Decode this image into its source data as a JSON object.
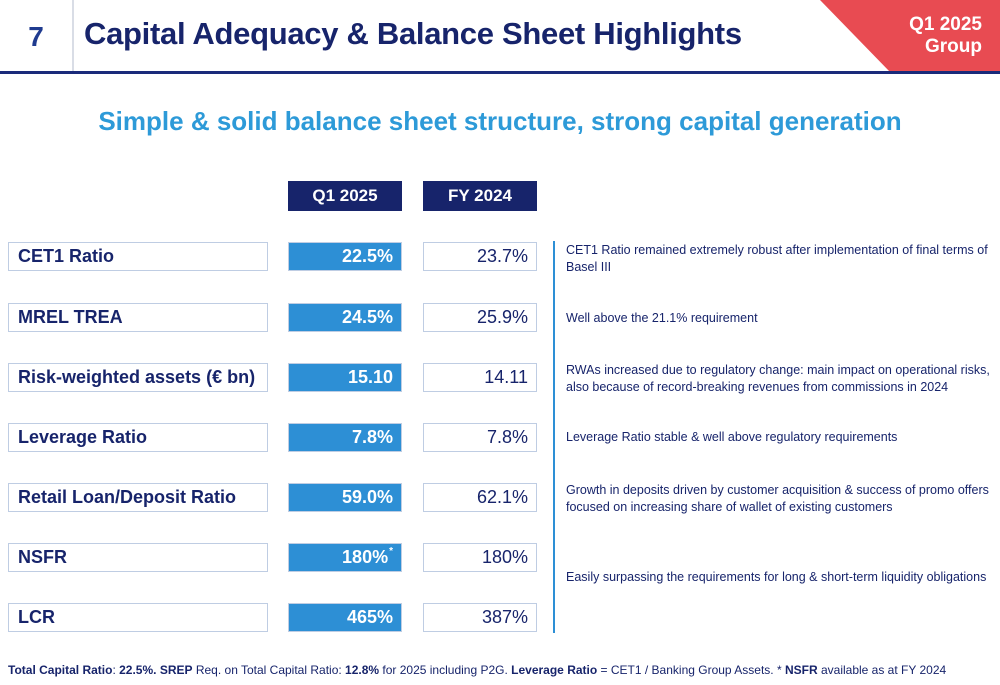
{
  "header": {
    "page_number": "7",
    "title": "Capital Adequacy & Balance Sheet Highlights",
    "period_line1": "Q1 2025",
    "period_line2": "Group"
  },
  "subtitle": "Simple & solid balance sheet structure, strong capital generation",
  "columns": {
    "q1": "Q1 2025",
    "fy": "FY 2024"
  },
  "rows": [
    {
      "label": "CET1 Ratio",
      "q1": "22.5%",
      "fy": "23.7%",
      "comment": "CET1 Ratio remained extremely robust after implementation of final terms of Basel III"
    },
    {
      "label": "MREL TREA",
      "q1": "24.5%",
      "fy": "25.9%",
      "comment": "Well above the 21.1% requirement"
    },
    {
      "label": "Risk-weighted assets (€ bn)",
      "q1": "15.10",
      "fy": "14.11",
      "comment": "RWAs increased due to regulatory change: main impact on operational risks, also because of record-breaking revenues from commissions in 2024"
    },
    {
      "label": "Leverage Ratio",
      "q1": "7.8%",
      "fy": "7.8%",
      "comment": "Leverage Ratio stable & well above regulatory requirements"
    },
    {
      "label": "Retail Loan/Deposit Ratio",
      "q1": "59.0%",
      "fy": "62.1%",
      "comment": "Growth in deposits driven by customer acquisition & success of promo offers focused on increasing share of wallet of existing customers"
    },
    {
      "label": "NSFR",
      "q1": "180%",
      "q1_mark": "*",
      "fy": "180%",
      "comment": ""
    },
    {
      "label": "LCR",
      "q1": "465%",
      "fy": "387%",
      "comment": ""
    }
  ],
  "liquidity_comment": "Easily surpassing the requirements for long & short-term liquidity obligations",
  "footnote": {
    "p1_bold": "Total Capital Ratio",
    "p1": ": ",
    "p2_bold": "22.5%. SREP",
    "p2": " Req. on Total Capital Ratio: ",
    "p3_bold": "12.8%",
    "p3": " for 2025 including P2G. ",
    "p4_bold": "Leverage Ratio",
    "p4": " = CET1 / Banking Group Assets. * ",
    "p5_bold": "NSFR",
    "p5": " available as at FY 2024"
  },
  "colors": {
    "navy": "#17246b",
    "blue": "#2d8fd5",
    "accent": "#e84b52",
    "subtitle": "#2d9ad8"
  }
}
